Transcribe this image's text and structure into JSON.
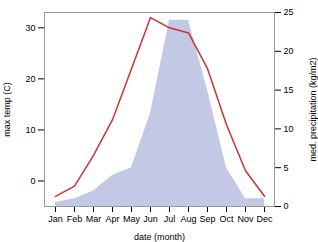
{
  "chart_data": {
    "type": "line",
    "xlabel": "date (month)",
    "ylabel": "max temp (C)",
    "y2label": "med. precipitation (kg/m2)",
    "categories": [
      "Jan",
      "Feb",
      "Mar",
      "Apr",
      "May",
      "Jun",
      "Jul",
      "Aug",
      "Sep",
      "Oct",
      "Nov",
      "Dec"
    ],
    "series": [
      {
        "type": "area",
        "axis": "y2",
        "color": "#b8c0e0",
        "values": [
          0.5,
          1,
          2,
          4,
          5,
          12,
          24,
          24,
          15,
          5,
          1,
          1
        ]
      },
      {
        "type": "line",
        "color": "#cc3333",
        "values": [
          -3,
          -1,
          5,
          12,
          22,
          32,
          30,
          29,
          22,
          11,
          2,
          -3
        ]
      }
    ],
    "ylim": [
      -5,
      33
    ],
    "yticks": [
      0,
      10,
      20,
      30
    ],
    "y2lim": [
      0,
      25
    ],
    "y2ticks": [
      0,
      5,
      10,
      15,
      20,
      25
    ],
    "grid": false
  }
}
